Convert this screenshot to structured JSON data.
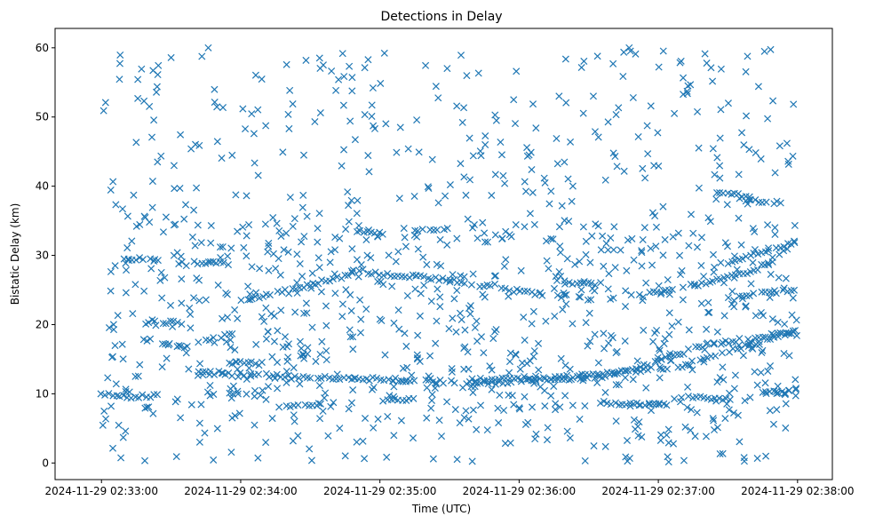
{
  "chart_data": {
    "type": "scatter",
    "title": "Detections in Delay",
    "xlabel": "Time (UTC)",
    "ylabel": "Bistatic Delay (km)",
    "marker": "x",
    "color": "#1f77b4",
    "x_unit": "seconds after 2024-11-29 02:33:00 UTC",
    "xlim": [
      -20,
      315
    ],
    "ylim": [
      -2.4,
      62.8
    ],
    "x_ticks": [
      {
        "value": 0,
        "label": "2024-11-29 02:33:00"
      },
      {
        "value": 60,
        "label": "2024-11-29 02:34:00"
      },
      {
        "value": 120,
        "label": "2024-11-29 02:35:00"
      },
      {
        "value": 180,
        "label": "2024-11-29 02:36:00"
      },
      {
        "value": 240,
        "label": "2024-11-29 02:37:00"
      },
      {
        "value": 300,
        "label": "2024-11-29 02:38:00"
      }
    ],
    "y_ticks": [
      {
        "value": 0,
        "label": "0"
      },
      {
        "value": 10,
        "label": "10"
      },
      {
        "value": 20,
        "label": "20"
      },
      {
        "value": 30,
        "label": "30"
      },
      {
        "value": 40,
        "label": "40"
      },
      {
        "value": 50,
        "label": "50"
      },
      {
        "value": 60,
        "label": "60"
      }
    ],
    "tracks": [
      {
        "t": [
          42,
          170,
          250,
          298
        ],
        "delay": [
          13.0,
          11.5,
          14.0,
          19.0
        ]
      },
      {
        "t": [
          160,
          215,
          260,
          300
        ],
        "delay": [
          12.0,
          12.2,
          17.0,
          19.0
        ]
      },
      {
        "t": [
          18,
          35,
          60
        ],
        "delay": [
          18.0,
          16.8,
          19.0
        ]
      },
      {
        "t": [
          60,
          80,
          105,
          115
        ],
        "delay": [
          23.5,
          25.0,
          27.0,
          28.0
        ]
      },
      {
        "t": [
          115,
          150,
          175,
          200
        ],
        "delay": [
          27.5,
          26.5,
          25.0,
          24.0
        ]
      },
      {
        "t": [
          230,
          260,
          280,
          300
        ],
        "delay": [
          24.0,
          26.0,
          27.5,
          32.0
        ]
      },
      {
        "t": [
          270,
          285,
          300
        ],
        "delay": [
          29.0,
          30.5,
          32.0
        ]
      },
      {
        "t": [
          0,
          10,
          25
        ],
        "delay": [
          10.0,
          9.5,
          9.8
        ]
      },
      {
        "t": [
          20,
          35
        ],
        "delay": [
          20.5,
          20.3
        ]
      },
      {
        "t": [
          10,
          25
        ],
        "delay": [
          29.5,
          29.4
        ]
      },
      {
        "t": [
          40,
          55
        ],
        "delay": [
          29.0,
          28.8
        ]
      },
      {
        "t": [
          110,
          125
        ],
        "delay": [
          33.5,
          33.0
        ]
      },
      {
        "t": [
          135,
          150
        ],
        "delay": [
          33.5,
          34.0
        ]
      },
      {
        "t": [
          55,
          70
        ],
        "delay": [
          14.5,
          14.3
        ]
      },
      {
        "t": [
          75,
          95
        ],
        "delay": [
          8.0,
          8.3
        ]
      },
      {
        "t": [
          120,
          135
        ],
        "delay": [
          9.0,
          9.2
        ]
      },
      {
        "t": [
          215,
          245
        ],
        "delay": [
          8.5,
          8.5
        ]
      },
      {
        "t": [
          250,
          270
        ],
        "delay": [
          9.5,
          9.3
        ]
      },
      {
        "t": [
          285,
          300
        ],
        "delay": [
          10.0,
          10.5
        ]
      },
      {
        "t": [
          265,
          280
        ],
        "delay": [
          39.0,
          38.5
        ]
      },
      {
        "t": [
          280,
          295
        ],
        "delay": [
          38.0,
          37.5
        ]
      },
      {
        "t": [
          200,
          215
        ],
        "delay": [
          26.0,
          25.8
        ]
      },
      {
        "t": [
          270,
          300
        ],
        "delay": [
          24.0,
          25.0
        ]
      }
    ],
    "scatter_count": 1100
  }
}
